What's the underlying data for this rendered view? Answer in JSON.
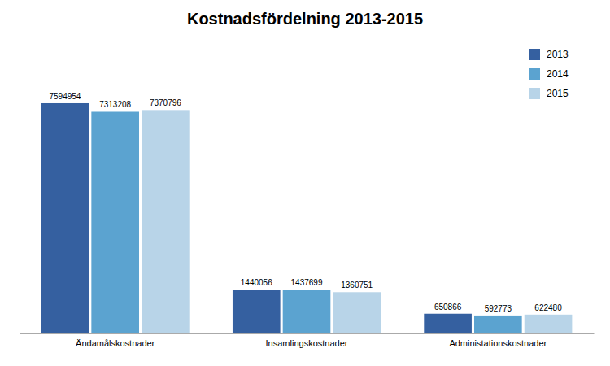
{
  "chart_data": {
    "type": "bar",
    "title": "Kostnadsfördelning 2013-2015",
    "categories": [
      "Ändamålskostnader",
      "Insamlingskostnader",
      "Administationskostnader"
    ],
    "series": [
      {
        "name": "2013",
        "color": "#3560A0",
        "values": [
          7594954,
          1440056,
          650866
        ]
      },
      {
        "name": "2014",
        "color": "#5BA3D0",
        "values": [
          7313208,
          1437699,
          592773
        ]
      },
      {
        "name": "2015",
        "color": "#B8D4E8",
        "values": [
          7370796,
          1360751,
          622480
        ]
      }
    ],
    "ylim": [
      0,
      9500000
    ],
    "data_labels": true,
    "tick_labels": "x",
    "grid": false,
    "legend": "upper-right"
  }
}
